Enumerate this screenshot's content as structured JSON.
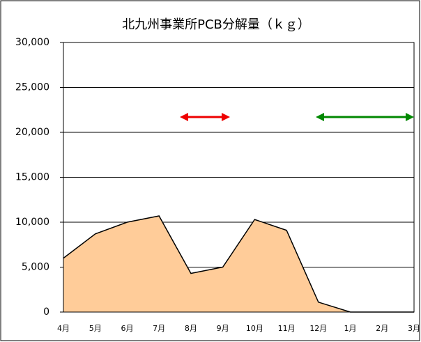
{
  "chart_data": {
    "type": "area",
    "title": "北九州事業所PCB分解量（ｋｇ）",
    "categories": [
      "4月",
      "5月",
      "6月",
      "7月",
      "8月",
      "9月",
      "10月",
      "11月",
      "12月",
      "1月",
      "2月",
      "3月"
    ],
    "values": [
      6000,
      8700,
      10000,
      10700,
      4300,
      5000,
      10300,
      9100,
      1100,
      0,
      0,
      0
    ],
    "color": "#ffcc99",
    "ylim": [
      0,
      30000
    ],
    "yticks": [
      0,
      {
        "value": 5000,
        "label": "5,000"
      },
      {
        "value": 10000,
        "label": "10,000"
      },
      {
        "value": 15000,
        "label": "15,000"
      },
      {
        "value": 20000,
        "label": "20,000"
      },
      {
        "value": 25000,
        "label": "25,000"
      },
      {
        "value": 30000,
        "label": "30,000"
      }
    ],
    "grid": true
  }
}
